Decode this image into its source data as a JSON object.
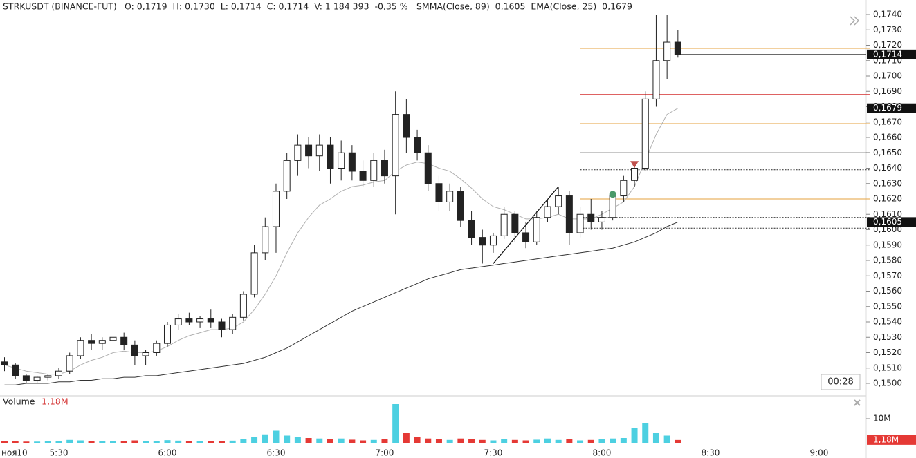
{
  "chart_data": {
    "type": "candlestick",
    "symbol": "STRKUSDT (BINANCE-FUT)",
    "ohlc_text": "O: 0,1719  H: 0,1730  L: 0,1714  C: 0,1714  V: 1 184 393  -0,35 %",
    "indicators_text": "SMMA(Close, 89)  0,1605  EMA(Close, 25)  0,1679",
    "volume_title": "Volume",
    "volume_value": {
      "value": 1.18,
      "label": "1,18M"
    },
    "date_label": "ноя10",
    "timer": "00:28",
    "up_color": "#26a69a",
    "down_color": "#222222",
    "vol_up_color": "#4dd0e1",
    "vol_down_color": "#e53935",
    "x": [
      "5:15",
      "5:18",
      "5:21",
      "5:24",
      "5:27",
      "5:30",
      "5:33",
      "5:36",
      "5:39",
      "5:42",
      "5:45",
      "5:48",
      "5:51",
      "5:54",
      "5:57",
      "6:00",
      "6:03",
      "6:06",
      "6:09",
      "6:12",
      "6:15",
      "6:18",
      "6:21",
      "6:24",
      "6:27",
      "6:30",
      "6:33",
      "6:36",
      "6:39",
      "6:42",
      "6:45",
      "6:48",
      "6:51",
      "6:54",
      "6:57",
      "7:00",
      "7:03",
      "7:06",
      "7:09",
      "7:12",
      "7:15",
      "7:18",
      "7:21",
      "7:24",
      "7:27",
      "7:30",
      "7:33",
      "7:36",
      "7:39",
      "7:42",
      "7:45",
      "7:48",
      "7:51",
      "7:54",
      "7:57",
      "8:00",
      "8:03",
      "8:06",
      "8:09",
      "8:12",
      "8:15",
      "8:18",
      "8:21"
    ],
    "open": [
      0.1514,
      0.1512,
      0.1505,
      0.1502,
      0.1504,
      0.1505,
      0.1508,
      0.1518,
      0.1528,
      0.1526,
      0.1528,
      0.153,
      0.1525,
      0.1518,
      0.152,
      0.1526,
      0.1538,
      0.1542,
      0.154,
      0.1542,
      0.154,
      0.1535,
      0.1543,
      0.1558,
      0.1585,
      0.1602,
      0.1625,
      0.1645,
      0.1655,
      0.1648,
      0.1655,
      0.164,
      0.165,
      0.1638,
      0.1632,
      0.1645,
      0.1635,
      0.1675,
      0.166,
      0.165,
      0.163,
      0.1618,
      0.1625,
      0.1606,
      0.1595,
      0.159,
      0.1596,
      0.161,
      0.1598,
      0.1592,
      0.1608,
      0.1615,
      0.1622,
      0.1598,
      0.161,
      0.1605,
      0.1608,
      0.1622,
      0.1632,
      0.164,
      0.1685,
      0.171,
      0.1722
    ],
    "high": [
      0.1517,
      0.1513,
      0.1506,
      0.1505,
      0.1506,
      0.151,
      0.152,
      0.153,
      0.1532,
      0.153,
      0.1534,
      0.1533,
      0.1528,
      0.1522,
      0.1528,
      0.154,
      0.1545,
      0.1546,
      0.1544,
      0.1548,
      0.1542,
      0.1545,
      0.156,
      0.159,
      0.1608,
      0.163,
      0.165,
      0.1662,
      0.166,
      0.1662,
      0.166,
      0.1658,
      0.1655,
      0.1645,
      0.165,
      0.1652,
      0.169,
      0.1685,
      0.1665,
      0.1655,
      0.1635,
      0.163,
      0.1628,
      0.1612,
      0.16,
      0.1598,
      0.1615,
      0.1612,
      0.1605,
      0.1612,
      0.162,
      0.1628,
      0.1625,
      0.1615,
      0.162,
      0.1612,
      0.1625,
      0.1635,
      0.1642,
      0.169,
      0.174,
      0.174,
      0.173
    ],
    "low": [
      0.1508,
      0.1503,
      0.15,
      0.15,
      0.1502,
      0.1503,
      0.1506,
      0.1516,
      0.1522,
      0.1522,
      0.1525,
      0.1522,
      0.1512,
      0.1512,
      0.1518,
      0.1524,
      0.1535,
      0.1538,
      0.1536,
      0.1536,
      0.153,
      0.1532,
      0.1541,
      0.1556,
      0.158,
      0.1585,
      0.162,
      0.1635,
      0.164,
      0.1638,
      0.163,
      0.1632,
      0.1632,
      0.1628,
      0.1628,
      0.163,
      0.161,
      0.165,
      0.1645,
      0.1625,
      0.1612,
      0.1612,
      0.1602,
      0.159,
      0.1578,
      0.1585,
      0.1594,
      0.1592,
      0.1588,
      0.159,
      0.1605,
      0.161,
      0.159,
      0.1595,
      0.16,
      0.16,
      0.1606,
      0.1618,
      0.1628,
      0.1638,
      0.168,
      0.1698,
      0.1712
    ],
    "close": [
      0.1512,
      0.1505,
      0.1502,
      0.1504,
      0.1505,
      0.1508,
      0.1518,
      0.1528,
      0.1526,
      0.1528,
      0.153,
      0.1525,
      0.1518,
      0.152,
      0.1526,
      0.1538,
      0.1542,
      0.154,
      0.1542,
      0.154,
      0.1535,
      0.1543,
      0.1558,
      0.1585,
      0.1602,
      0.1625,
      0.1645,
      0.1655,
      0.1648,
      0.1655,
      0.164,
      0.165,
      0.1638,
      0.1632,
      0.1645,
      0.1635,
      0.1675,
      0.166,
      0.165,
      0.163,
      0.1618,
      0.1625,
      0.1606,
      0.1595,
      0.159,
      0.1596,
      0.161,
      0.1598,
      0.1592,
      0.1608,
      0.1615,
      0.1622,
      0.1598,
      0.161,
      0.1605,
      0.1608,
      0.1622,
      0.1632,
      0.164,
      0.1685,
      0.171,
      0.1722,
      0.1714
    ],
    "volume": [
      0.8,
      0.6,
      0.5,
      0.5,
      0.6,
      0.7,
      1.2,
      1.0,
      0.8,
      0.7,
      0.8,
      0.7,
      1.0,
      0.6,
      0.7,
      1.1,
      0.9,
      0.7,
      0.6,
      0.8,
      0.7,
      0.9,
      1.5,
      2.5,
      3.5,
      5.0,
      3.0,
      2.5,
      2.0,
      1.8,
      1.5,
      1.8,
      1.3,
      1.0,
      1.2,
      1.5,
      16.0,
      4.0,
      2.5,
      1.8,
      1.5,
      1.2,
      1.8,
      1.5,
      1.2,
      1.0,
      1.5,
      1.2,
      1.0,
      1.3,
      1.8,
      1.2,
      1.5,
      1.0,
      1.2,
      1.5,
      1.8,
      2.0,
      6.0,
      8.0,
      4.0,
      3.0,
      1.18
    ],
    "ema": {
      "color": "#b0b0b0",
      "values": [
        0.1512,
        0.151,
        0.1508,
        0.1507,
        0.1506,
        0.1506,
        0.1508,
        0.1512,
        0.1515,
        0.1517,
        0.152,
        0.1521,
        0.152,
        0.152,
        0.1521,
        0.1524,
        0.1528,
        0.1531,
        0.1533,
        0.1535,
        0.1535,
        0.1536,
        0.154,
        0.1548,
        0.1558,
        0.157,
        0.1585,
        0.1598,
        0.1608,
        0.1616,
        0.162,
        0.1625,
        0.1628,
        0.1629,
        0.1631,
        0.1632,
        0.1638,
        0.1642,
        0.1644,
        0.1643,
        0.164,
        0.1638,
        0.1633,
        0.1627,
        0.162,
        0.1615,
        0.1613,
        0.161,
        0.1607,
        0.1607,
        0.1608,
        0.161,
        0.1607,
        0.1607,
        0.1607,
        0.161,
        0.1614,
        0.1618,
        0.1628,
        0.1645,
        0.1662,
        0.1675,
        0.1679
      ]
    },
    "smma": {
      "color": "#333333",
      "values": [
        0.1499,
        0.1499,
        0.15,
        0.15,
        0.15,
        0.1501,
        0.1501,
        0.1502,
        0.1502,
        0.1503,
        0.1503,
        0.1504,
        0.1504,
        0.1505,
        0.1505,
        0.1506,
        0.1507,
        0.1508,
        0.1509,
        0.151,
        0.1511,
        0.1512,
        0.1513,
        0.1515,
        0.1517,
        0.152,
        0.1523,
        0.1527,
        0.1531,
        0.1535,
        0.1539,
        0.1543,
        0.1547,
        0.155,
        0.1553,
        0.1556,
        0.1559,
        0.1562,
        0.1565,
        0.1568,
        0.157,
        0.1572,
        0.1574,
        0.1575,
        0.1576,
        0.1577,
        0.1578,
        0.1579,
        0.158,
        0.1581,
        0.1582,
        0.1583,
        0.1584,
        0.1585,
        0.1586,
        0.1587,
        0.1588,
        0.159,
        0.1592,
        0.1595,
        0.1598,
        0.1602,
        0.1605
      ]
    },
    "levels": [
      {
        "value": 0.1718,
        "color": "#e6a23c",
        "dash": false
      },
      {
        "value": 0.1688,
        "color": "#d32f2f",
        "dash": false
      },
      {
        "value": 0.1669,
        "color": "#e6a23c",
        "dash": false
      },
      {
        "value": 0.165,
        "color": "#222222",
        "dash": false
      },
      {
        "value": 0.1639,
        "color": "#222222",
        "dash": true
      },
      {
        "value": 0.162,
        "color": "#e6a23c",
        "dash": false
      },
      {
        "value": 0.1608,
        "color": "#222222",
        "dash": true
      },
      {
        "value": 0.1601,
        "color": "#222222",
        "dash": true
      }
    ],
    "levels_start": "7:54",
    "trendline": {
      "x": [
        "7:30",
        "7:48"
      ],
      "y": [
        0.1578,
        0.1628
      ]
    },
    "sell_marker": {
      "x": "8:09",
      "y": 0.1641,
      "color": "#c0504d"
    },
    "buy_marker": {
      "x": "8:03",
      "y": 0.1623,
      "color": "#4a9a6a"
    },
    "price_tags": [
      {
        "value": 0.1714,
        "label": "0,1714"
      },
      {
        "value": 0.1679,
        "label": "0,1679"
      },
      {
        "value": 0.1605,
        "label": "0,1605"
      }
    ],
    "ylim": [
      0.15,
      0.174
    ],
    "yticks": [
      {
        "value": 0.15,
        "label": "0,1500"
      },
      {
        "value": 0.151,
        "label": "0,1510"
      },
      {
        "value": 0.152,
        "label": "0,1520"
      },
      {
        "value": 0.153,
        "label": "0,1530"
      },
      {
        "value": 0.154,
        "label": "0,1540"
      },
      {
        "value": 0.155,
        "label": "0,1550"
      },
      {
        "value": 0.156,
        "label": "0,1560"
      },
      {
        "value": 0.157,
        "label": "0,1570"
      },
      {
        "value": 0.158,
        "label": "0,1580"
      },
      {
        "value": 0.159,
        "label": "0,1590"
      },
      {
        "value": 0.16,
        "label": "0,1600"
      },
      {
        "value": 0.161,
        "label": "0,1610"
      },
      {
        "value": 0.162,
        "label": "0,1620"
      },
      {
        "value": 0.163,
        "label": "0,1630"
      },
      {
        "value": 0.164,
        "label": "0,1640"
      },
      {
        "value": 0.165,
        "label": "0,1650"
      },
      {
        "value": 0.166,
        "label": "0,1660"
      },
      {
        "value": 0.167,
        "label": "0,1670"
      },
      {
        "value": 0.168,
        "label": "0,1680"
      },
      {
        "value": 0.169,
        "label": "0,1690"
      },
      {
        "value": 0.17,
        "label": "0,1700"
      },
      {
        "value": 0.171,
        "label": "0,1710"
      },
      {
        "value": 0.172,
        "label": "0,1720"
      },
      {
        "value": 0.173,
        "label": "0,1730"
      },
      {
        "value": 0.174,
        "label": "0,1740"
      }
    ],
    "vlim": [
      0,
      17
    ],
    "vticks": [
      {
        "value": 10,
        "label": "10M"
      }
    ],
    "xticks": [
      "5:30",
      "6:00",
      "6:30",
      "7:00",
      "7:30",
      "8:00",
      "8:30",
      "9:00"
    ]
  }
}
